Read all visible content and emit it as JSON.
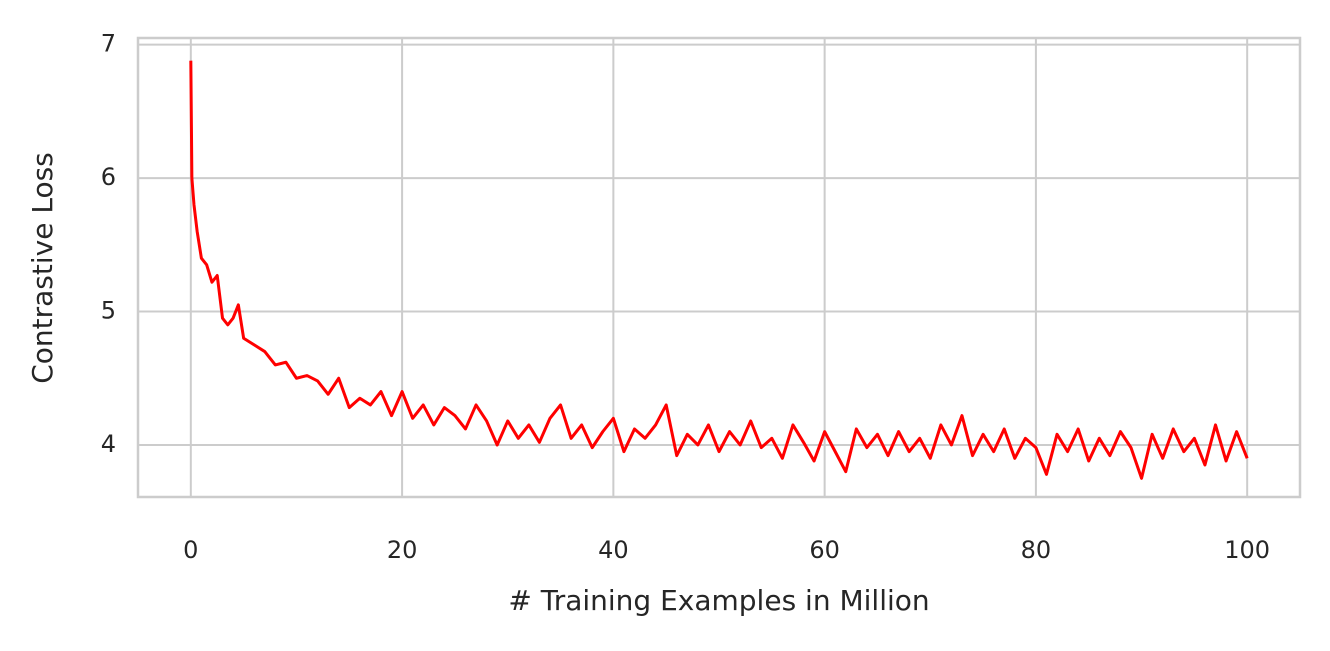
{
  "chart_data": {
    "type": "line",
    "xlabel": "# Training Examples in Million",
    "ylabel": "Contrastive Loss",
    "xlim": [
      -5,
      105
    ],
    "ylim": [
      3.61,
      7.05
    ],
    "xticks": [
      0,
      20,
      40,
      60,
      80,
      100
    ],
    "yticks": [
      4,
      5,
      6,
      7
    ],
    "grid": true,
    "series": [
      {
        "name": "loss",
        "color": "#ff0000",
        "x": [
          0,
          0.1,
          0.3,
          0.6,
          1,
          1.5,
          2,
          2.5,
          3,
          3.5,
          4,
          4.5,
          5,
          6,
          7,
          8,
          9,
          10,
          11,
          12,
          13,
          14,
          15,
          16,
          17,
          18,
          19,
          20,
          21,
          22,
          23,
          24,
          25,
          26,
          27,
          28,
          29,
          30,
          31,
          32,
          33,
          34,
          35,
          36,
          37,
          38,
          39,
          40,
          41,
          42,
          43,
          44,
          45,
          46,
          47,
          48,
          49,
          50,
          51,
          52,
          53,
          54,
          55,
          56,
          57,
          58,
          59,
          60,
          61,
          62,
          63,
          64,
          65,
          66,
          67,
          68,
          69,
          70,
          71,
          72,
          73,
          74,
          75,
          76,
          77,
          78,
          79,
          80,
          81,
          82,
          83,
          84,
          85,
          86,
          87,
          88,
          89,
          90,
          91,
          92,
          93,
          94,
          95,
          96,
          97,
          98,
          99,
          100
        ],
        "values": [
          6.88,
          6.0,
          5.8,
          5.6,
          5.4,
          5.35,
          5.22,
          5.27,
          4.95,
          4.9,
          4.95,
          5.05,
          4.8,
          4.75,
          4.7,
          4.6,
          4.62,
          4.5,
          4.52,
          4.48,
          4.38,
          4.5,
          4.28,
          4.35,
          4.3,
          4.4,
          4.22,
          4.4,
          4.2,
          4.3,
          4.15,
          4.28,
          4.22,
          4.12,
          4.3,
          4.18,
          4.0,
          4.18,
          4.05,
          4.15,
          4.02,
          4.2,
          4.3,
          4.05,
          4.15,
          3.98,
          4.1,
          4.2,
          3.95,
          4.12,
          4.05,
          4.15,
          4.3,
          3.92,
          4.08,
          4.0,
          4.15,
          3.95,
          4.1,
          4.0,
          4.18,
          3.98,
          4.05,
          3.9,
          4.15,
          4.02,
          3.88,
          4.1,
          3.95,
          3.8,
          4.12,
          3.98,
          4.08,
          3.92,
          4.1,
          3.95,
          4.05,
          3.9,
          4.15,
          4.0,
          4.22,
          3.92,
          4.08,
          3.95,
          4.12,
          3.9,
          4.05,
          3.98,
          3.78,
          4.08,
          3.95,
          4.12,
          3.88,
          4.05,
          3.92,
          4.1,
          3.98,
          3.75,
          4.08,
          3.9,
          4.12,
          3.95,
          4.05,
          3.85,
          4.15,
          3.88,
          4.1,
          3.9
        ]
      }
    ]
  }
}
